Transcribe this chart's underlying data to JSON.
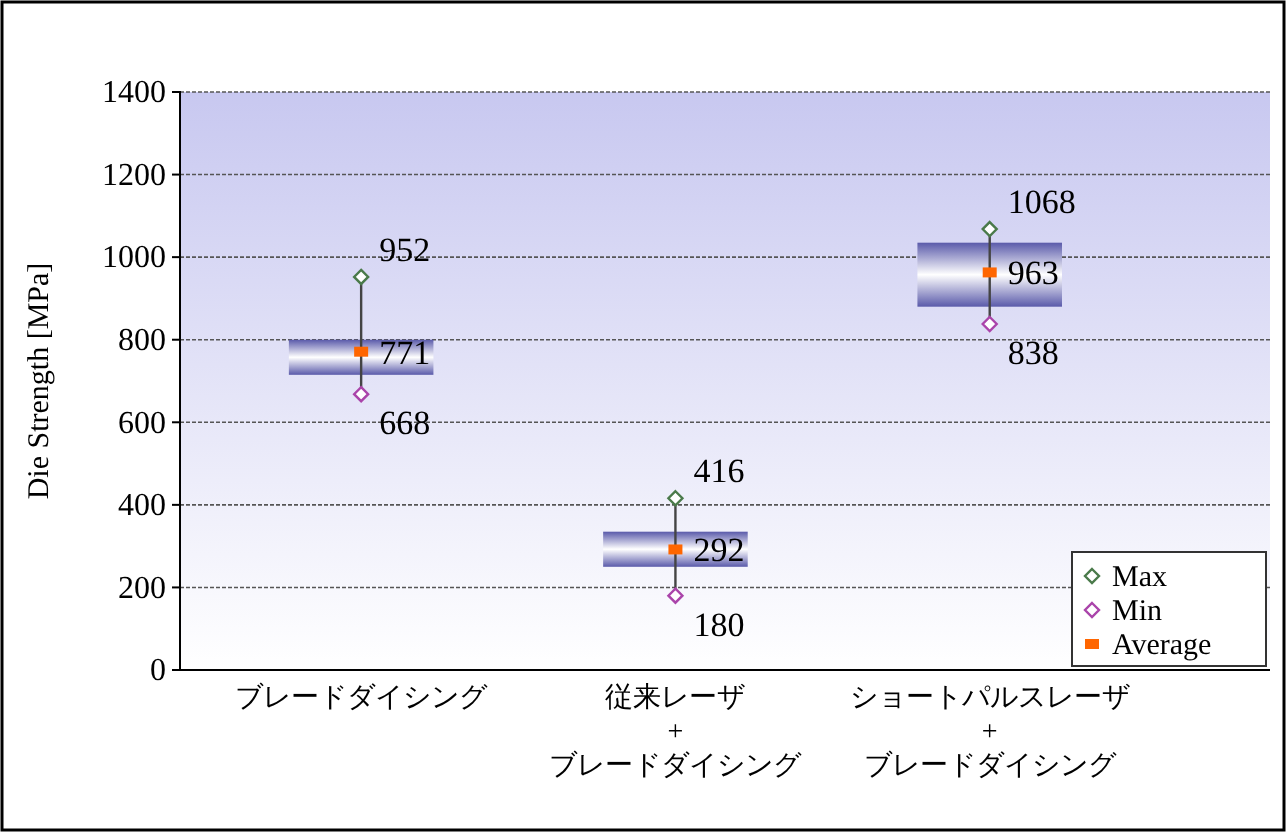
{
  "chart_data": {
    "type": "bar",
    "ylabel": "Die Strength [MPa]",
    "categories": [
      "ブレードダイシング",
      "従来レーザ\n+\nブレードダイシング",
      "ショートパルスレーザ\n+\nブレードダイシング"
    ],
    "series": [
      {
        "color": "#5a5aaa",
        "base": [
          715,
          250,
          880
        ],
        "values": [
          85,
          85,
          155
        ]
      },
      {
        "type": "scatter",
        "name": "Max",
        "color": "#4a7a4a",
        "marker": "diamond",
        "values": [
          952,
          416,
          1068
        ],
        "value_labels": [
          "952",
          "416",
          "1068"
        ]
      },
      {
        "type": "scatter",
        "name": "Min",
        "color": "#aa44aa",
        "marker": "diamond",
        "values": [
          668,
          180,
          838
        ],
        "value_labels": [
          "668",
          "180",
          "838"
        ]
      },
      {
        "type": "scatter",
        "name": "Average",
        "color": "#ff6600",
        "marker": "square",
        "values": [
          771,
          292,
          963
        ],
        "value_labels": [
          "771",
          "292",
          "963"
        ]
      }
    ],
    "ylim": [
      0,
      1400
    ],
    "yticks": [
      0,
      200,
      400,
      600,
      800,
      1000,
      1200,
      1400
    ],
    "grid": "y",
    "legend": "bottom right"
  }
}
